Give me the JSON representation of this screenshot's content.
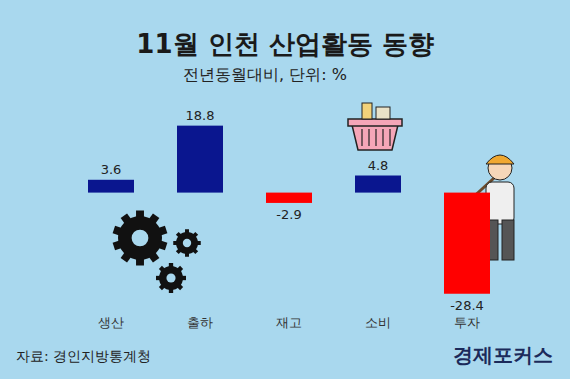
{
  "chart_data": {
    "type": "bar",
    "title": "11월 인천 산업활동 동향",
    "subtitle": "전년동월대비, 단위: %",
    "categories": [
      "생산",
      "출하",
      "재고",
      "소비",
      "투자"
    ],
    "values": [
      3.6,
      18.8,
      -2.9,
      4.8,
      -28.4
    ],
    "colors": [
      "#0a168f",
      "#0a168f",
      "#ff0000",
      "#0a168f",
      "#ff0000"
    ],
    "ylim": [
      -31,
      26
    ],
    "data_labels": true,
    "tick_labels": "x",
    "source": "자료: 경인지방통계청",
    "brand": "경제포커스"
  }
}
